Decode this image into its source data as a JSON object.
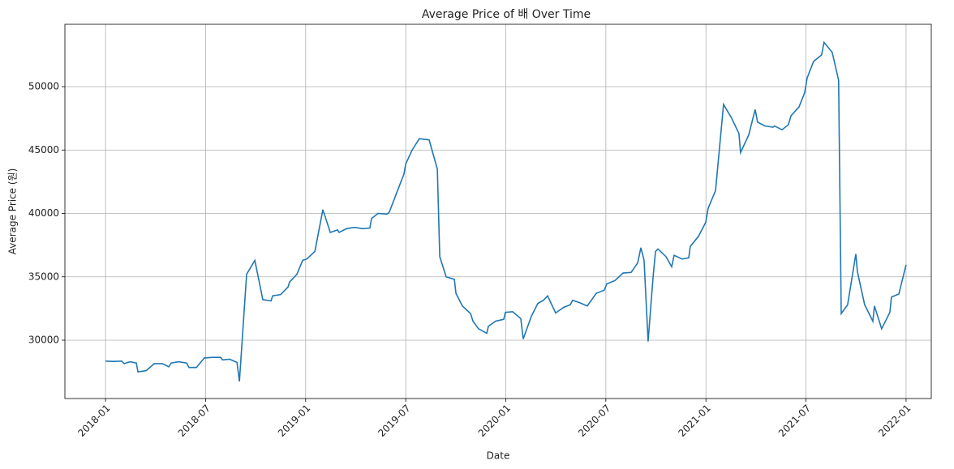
{
  "chart_data": {
    "type": "line",
    "title": "Average Price of 배 Over Time",
    "xlabel": "Date",
    "ylabel": "Average Price (원)",
    "x": [
      2018.0,
      2018.041,
      2018.081,
      2018.093,
      2018.122,
      2018.154,
      2018.162,
      2018.203,
      2018.243,
      2018.284,
      2018.316,
      2018.328,
      2018.365,
      2018.405,
      2018.417,
      2018.454,
      2018.494,
      2018.535,
      2018.575,
      2018.584,
      2018.62,
      2018.657,
      2018.669,
      2018.705,
      2018.746,
      2018.786,
      2018.827,
      2018.835,
      2018.875,
      2018.912,
      2018.92,
      2018.956,
      2018.985,
      2019.005,
      2019.046,
      2019.086,
      2019.123,
      2019.159,
      2019.167,
      2019.204,
      2019.244,
      2019.285,
      2019.321,
      2019.329,
      2019.362,
      2019.406,
      2019.418,
      2019.459,
      2019.491,
      2019.5,
      2019.532,
      2019.568,
      2019.617,
      2019.658,
      2019.67,
      2019.702,
      2019.743,
      2019.751,
      2019.783,
      2019.824,
      2019.836,
      2019.864,
      2019.905,
      2019.913,
      2019.949,
      2019.99,
      2019.998,
      2020.034,
      2020.075,
      2020.087,
      2020.128,
      2020.16,
      2020.188,
      2020.209,
      2020.249,
      2020.29,
      2020.322,
      2020.334,
      2020.371,
      2020.407,
      2020.452,
      2020.492,
      2020.505,
      2020.545,
      2020.586,
      2020.626,
      2020.659,
      2020.675,
      2020.691,
      2020.711,
      2020.736,
      2020.748,
      2020.76,
      2020.8,
      2020.829,
      2020.841,
      2020.881,
      2020.914,
      2020.922,
      2020.963,
      2020.999,
      2021.011,
      2021.048,
      2021.088,
      2021.129,
      2021.165,
      2021.173,
      2021.214,
      2021.246,
      2021.258,
      2021.295,
      2021.335,
      2021.343,
      2021.38,
      2021.412,
      2021.425,
      2021.465,
      2021.493,
      2021.506,
      2021.538,
      2021.578,
      2021.59,
      2021.631,
      2021.663,
      2021.676,
      2021.708,
      2021.749,
      2021.757,
      2021.793,
      2021.834,
      2021.842,
      2021.878,
      2021.919,
      2021.927,
      2021.964,
      2022.0
    ],
    "series": [
      {
        "name": "Average Price",
        "color": "#1f77b4",
        "values": [
          28350,
          28330,
          28350,
          28150,
          28300,
          28200,
          27500,
          27600,
          28150,
          28150,
          27900,
          28200,
          28300,
          28200,
          27850,
          27850,
          28600,
          28650,
          28650,
          28450,
          28500,
          28250,
          26750,
          35200,
          36300,
          33200,
          33100,
          33500,
          33600,
          34200,
          34600,
          35200,
          36300,
          36400,
          37000,
          40300,
          38500,
          38700,
          38500,
          38800,
          38900,
          38800,
          38850,
          39600,
          40000,
          39950,
          40100,
          41800,
          43100,
          43900,
          45000,
          45900,
          45800,
          43500,
          36600,
          35000,
          34800,
          33700,
          32700,
          32100,
          31500,
          30900,
          30550,
          31100,
          31500,
          31650,
          32200,
          32250,
          31700,
          30100,
          31900,
          32900,
          33150,
          33500,
          32150,
          32600,
          32800,
          33150,
          32950,
          32700,
          33700,
          33950,
          34450,
          34700,
          35300,
          35350,
          36100,
          37300,
          36300,
          29900,
          35000,
          37000,
          37200,
          36600,
          35800,
          36700,
          36400,
          36500,
          37400,
          38200,
          39300,
          40400,
          41800,
          48600,
          47500,
          46300,
          44800,
          46200,
          48200,
          47200,
          46900,
          46800,
          46900,
          46600,
          47000,
          47700,
          48400,
          49500,
          50700,
          52000,
          52500,
          53500,
          52700,
          50500,
          32100,
          32800,
          36800,
          35400,
          32800,
          31500,
          32700,
          30900,
          32200,
          33400,
          33650,
          35950
        ]
      }
    ],
    "xlim": [
      2017.797,
      2022.126
    ],
    "xticks": [
      {
        "value": 2018.0,
        "label": "2018-01"
      },
      {
        "value": 2018.5,
        "label": "2018-07"
      },
      {
        "value": 2019.0,
        "label": "2019-01"
      },
      {
        "value": 2019.5,
        "label": "2019-07"
      },
      {
        "value": 2020.0,
        "label": "2020-01"
      },
      {
        "value": 2020.5,
        "label": "2020-07"
      },
      {
        "value": 2021.0,
        "label": "2021-01"
      },
      {
        "value": 2021.5,
        "label": "2021-07"
      },
      {
        "value": 2022.0,
        "label": "2022-01"
      }
    ],
    "ylim": [
      25400,
      54920
    ],
    "yticks": [
      30000,
      35000,
      40000,
      45000,
      50000
    ],
    "grid": true
  }
}
